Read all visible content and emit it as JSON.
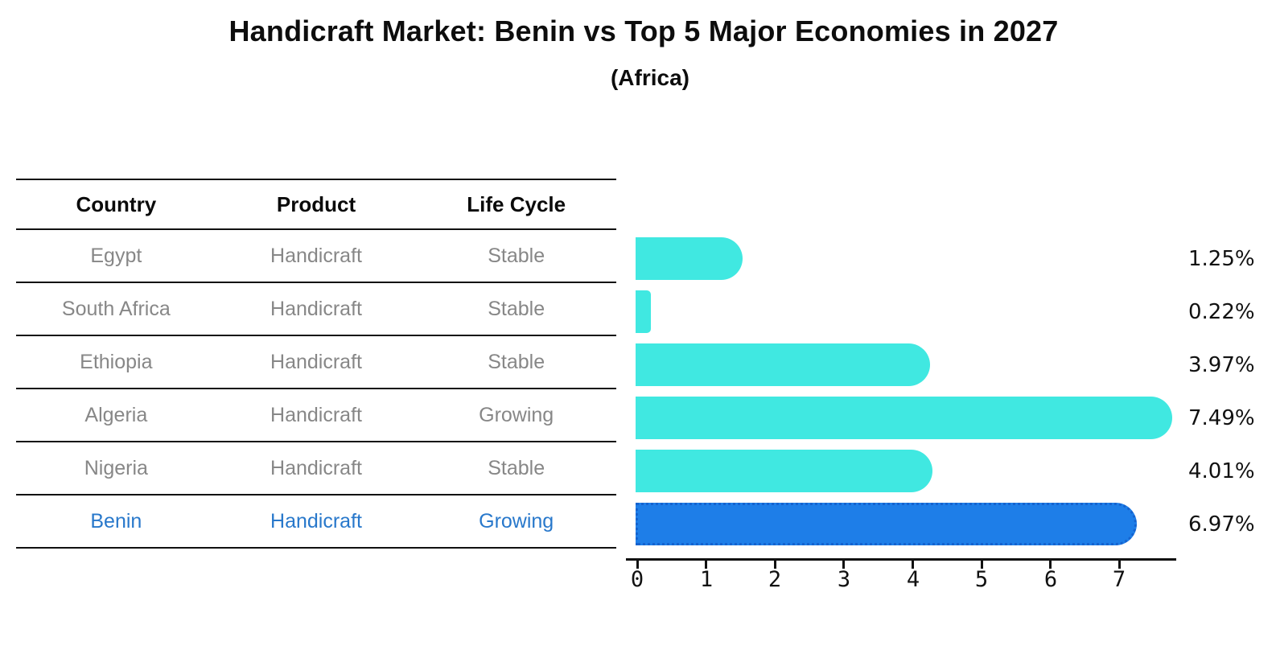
{
  "title": "Handicraft Market: Benin vs Top 5 Major Economies in 2027",
  "subtitle": "(Africa)",
  "table": {
    "headers": [
      "Country",
      "Product",
      "Life Cycle"
    ],
    "rows": [
      {
        "country": "Egypt",
        "product": "Handicraft",
        "life_cycle": "Stable",
        "highlight": false
      },
      {
        "country": "South Africa",
        "product": "Handicraft",
        "life_cycle": "Stable",
        "highlight": false
      },
      {
        "country": "Ethiopia",
        "product": "Handicraft",
        "life_cycle": "Stable",
        "highlight": false
      },
      {
        "country": "Algeria",
        "product": "Handicraft",
        "life_cycle": "Growing",
        "highlight": false
      },
      {
        "country": "Nigeria",
        "product": "Handicraft",
        "life_cycle": "Stable",
        "highlight": false
      },
      {
        "country": "Benin",
        "product": "Handicraft",
        "life_cycle": "Growing",
        "highlight": true
      }
    ]
  },
  "chart_data": {
    "type": "bar",
    "orientation": "horizontal",
    "title": "Handicraft Market: Benin vs Top 5 Major Economies in 2027",
    "subtitle": "(Africa)",
    "categories": [
      "Egypt",
      "South Africa",
      "Ethiopia",
      "Algeria",
      "Nigeria",
      "Benin"
    ],
    "values": [
      1.25,
      0.22,
      3.97,
      7.49,
      4.01,
      6.97
    ],
    "value_labels": [
      "1.25%",
      "0.22%",
      "3.97%",
      "7.49%",
      "4.01%",
      "6.97%"
    ],
    "x_ticks": [
      "0",
      "1",
      "2",
      "3",
      "4",
      "5",
      "6",
      "7"
    ],
    "xlim": [
      0,
      7.8
    ],
    "grid": false,
    "legend": false,
    "highlight_index": 5,
    "bar_color": "#40e8e1",
    "highlight_bar_color": "#1e7ee8",
    "highlight_border_color": "#1563cf",
    "highlight_text_color": "#2878cb"
  },
  "colors": {
    "background": "#ffffff",
    "table_text": "#878787",
    "header_text": "#0a0a0a",
    "line": "#111111",
    "value_label_text": "#111111"
  }
}
